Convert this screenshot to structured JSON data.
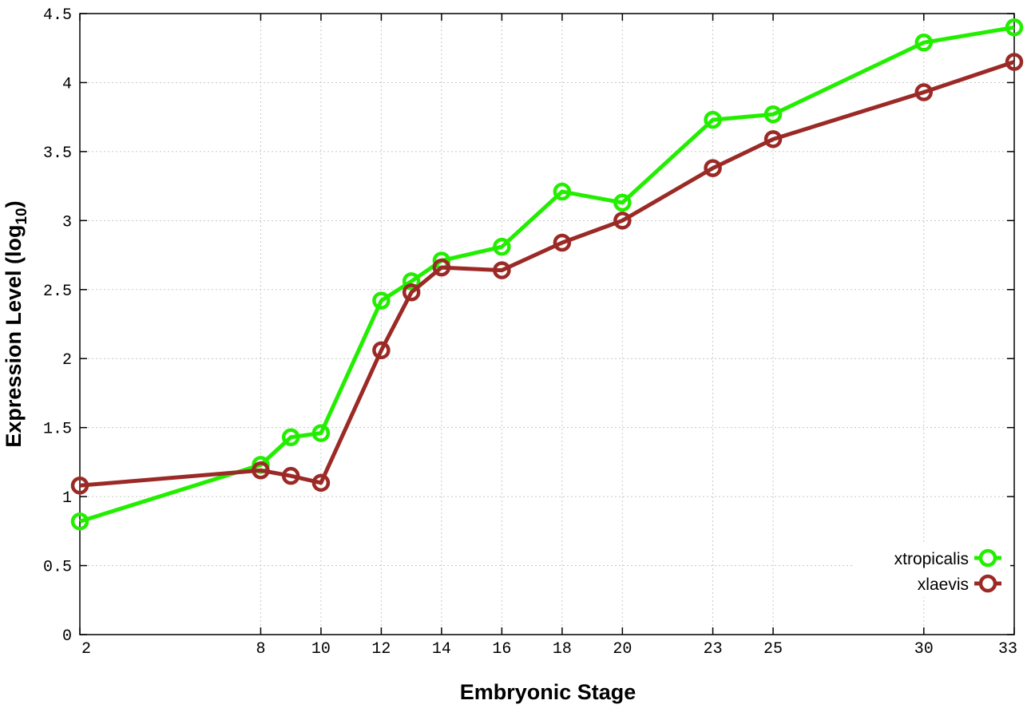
{
  "chart_data": {
    "type": "line",
    "xlabel": "Embryonic Stage",
    "ylabel_main": "Expression Level (log",
    "ylabel_sub": "10",
    "ylabel_close": ")",
    "ylim": [
      0,
      4.5
    ],
    "x": [
      2,
      8,
      9,
      10,
      12,
      13,
      14,
      16,
      18,
      20,
      23,
      25,
      30,
      33
    ],
    "x_ticks": [
      "2",
      "8",
      "10",
      "12",
      "14",
      "16",
      "18",
      "20",
      "23",
      "25",
      "30",
      "33"
    ],
    "y_ticks": [
      "0",
      "0.5",
      "1",
      "1.5",
      "2",
      "2.5",
      "3",
      "3.5",
      "4",
      "4.5"
    ],
    "grid": true,
    "legend_position": "bottom-right",
    "series": [
      {
        "name": "xtropicalis",
        "color": "#22ee00",
        "values": [
          0.82,
          1.23,
          1.43,
          1.46,
          2.42,
          2.56,
          2.71,
          2.81,
          3.21,
          3.13,
          3.73,
          3.77,
          4.29,
          4.4
        ]
      },
      {
        "name": "xlaevis",
        "color": "#9b2a26",
        "values": [
          1.08,
          1.19,
          1.15,
          1.1,
          2.06,
          2.48,
          2.66,
          2.64,
          2.84,
          3.0,
          3.38,
          3.59,
          3.93,
          4.15
        ]
      }
    ]
  }
}
